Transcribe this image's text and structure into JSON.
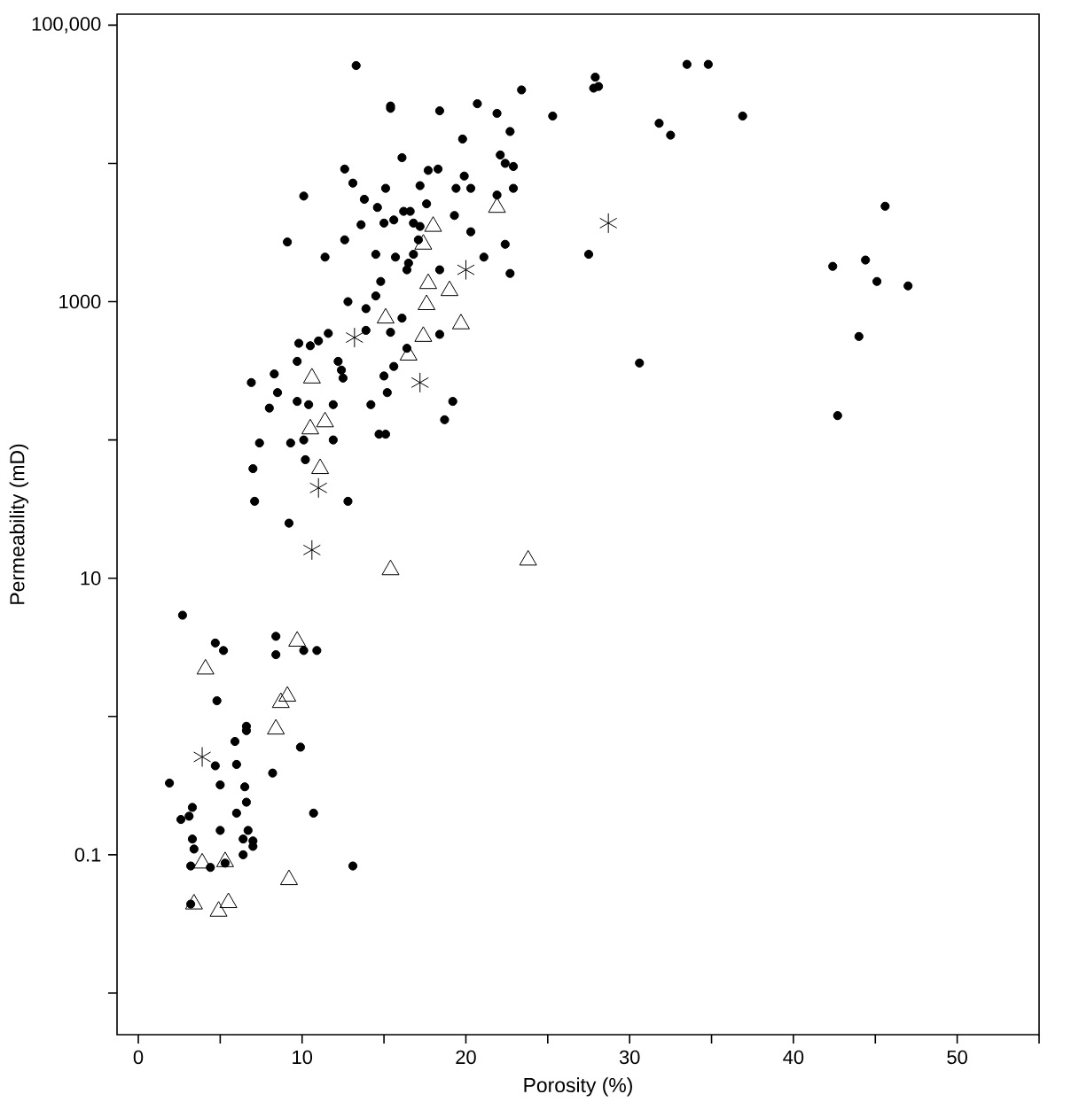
{
  "chart_data": {
    "type": "scatter",
    "xlabel": "Porosity (%)",
    "ylabel": "Permeability (mD)",
    "log": "y",
    "xlim": [
      -1.3,
      55
    ],
    "ylim": [
      0.005,
      120000
    ],
    "xticks": [
      0,
      {
        "value": 5,
        "label": null
      },
      10,
      {
        "value": 15,
        "label": null
      },
      20,
      {
        "value": 25,
        "label": null
      },
      30,
      {
        "value": 35,
        "label": null
      },
      40,
      {
        "value": 45,
        "label": null
      },
      50,
      {
        "value": 55,
        "label": null
      }
    ],
    "yticks": [
      {
        "value": 0.01,
        "label": null
      },
      0.1,
      {
        "value": 1,
        "label": null
      },
      10,
      {
        "value": 100,
        "label": null
      },
      1000,
      {
        "value": 10000,
        "label": null
      },
      {
        "value": 100000,
        "label": "100,000"
      }
    ],
    "series": [
      {
        "color": "#000000",
        "marker": "circle",
        "x": [
          13.3,
          15.4,
          15.4,
          18.4,
          20.7,
          21.9,
          23.4,
          25.3,
          19.8,
          22.7,
          16.1,
          22.1,
          22.4,
          22.9,
          12.6,
          17.7,
          18.3,
          13.1,
          15.1,
          17.2,
          19.4,
          19.9,
          20.3,
          22.9,
          10.1,
          13.8,
          14.6,
          17.6,
          16.2,
          16.6,
          15.6,
          15.0,
          13.6,
          16.8,
          17.2,
          19.3,
          21.9,
          9.1,
          12.6,
          11.4,
          14.5,
          15.7,
          20.3,
          22.4,
          17.1,
          16.8,
          16.5,
          16.4,
          21.1,
          22.7,
          18.4,
          14.8,
          14.5,
          12.8,
          13.9,
          16.1,
          18.4,
          15.4,
          13.9,
          11.6,
          11.0,
          10.5,
          9.8,
          16.4,
          9.7,
          12.2,
          12.4,
          12.5,
          15.6,
          15.0,
          6.9,
          8.3,
          8.5,
          19.2,
          18.7,
          9.7,
          10.4,
          11.9,
          8.0,
          14.2,
          15.2,
          14.7,
          15.1,
          7.4,
          9.3,
          10.1,
          11.9,
          10.2,
          7.0,
          7.1,
          12.8,
          9.2,
          27.9,
          27.8,
          28.1,
          33.5,
          34.8,
          31.8,
          32.5,
          36.9,
          27.5,
          30.6,
          45.6,
          42.4,
          44.4,
          45.1,
          47.0,
          44.0,
          42.7,
          2.7,
          4.7,
          5.2,
          8.4,
          8.4,
          10.1,
          10.9,
          4.8,
          6.6,
          6.6,
          5.9,
          9.9,
          4.7,
          6.0,
          8.2,
          1.9,
          5.0,
          6.5,
          6.6,
          3.3,
          2.6,
          3.1,
          6.0,
          10.7,
          5.0,
          3.3,
          3.4,
          6.7,
          6.4,
          7.0,
          7.0,
          6.4,
          3.2,
          4.4,
          5.3,
          13.1,
          3.2
        ],
        "values": [
          51000,
          26000,
          25000,
          24000,
          27000,
          23000,
          34000,
          22000,
          15000,
          17000,
          11000,
          11500,
          10000,
          9500,
          9100,
          8900,
          9100,
          7200,
          6600,
          6900,
          6600,
          8100,
          6600,
          6600,
          5800,
          5500,
          4800,
          5100,
          4500,
          4500,
          3900,
          3700,
          3600,
          3700,
          3500,
          4200,
          5900,
          2700,
          2800,
          2100,
          2200,
          2100,
          3200,
          2600,
          2800,
          2200,
          1900,
          1700,
          2100,
          1600,
          1700,
          1400,
          1100,
          1000,
          890,
          760,
          580,
          600,
          620,
          590,
          520,
          480,
          500,
          460,
          370,
          370,
          320,
          280,
          340,
          290,
          260,
          300,
          220,
          190,
          140,
          190,
          180,
          180,
          170,
          180,
          220,
          110,
          110,
          95,
          95,
          100,
          100,
          72,
          62,
          36,
          36,
          25,
          42000,
          35000,
          36000,
          52000,
          52000,
          19500,
          16000,
          22000,
          2200,
          360,
          4900,
          1800,
          2000,
          1400,
          1300,
          560,
          150,
          5.4,
          3.4,
          3.0,
          3.8,
          2.8,
          3.0,
          3.0,
          1.3,
          0.85,
          0.79,
          0.66,
          0.6,
          0.44,
          0.45,
          0.39,
          0.33,
          0.32,
          0.31,
          0.24,
          0.22,
          0.18,
          0.19,
          0.2,
          0.2,
          0.15,
          0.13,
          0.11,
          0.15,
          0.13,
          0.126,
          0.115,
          0.1,
          0.083,
          0.081,
          0.087,
          0.083,
          0.044
        ]
      },
      {
        "color": "#000000",
        "marker": "triangle",
        "x": [
          21.9,
          18.0,
          17.4,
          17.7,
          19.0,
          17.6,
          15.1,
          19.7,
          17.4,
          16.5,
          10.6,
          11.4,
          10.5,
          11.1,
          15.4,
          23.8,
          9.7,
          4.1,
          9.1,
          8.7,
          8.4,
          3.9,
          5.3,
          9.2,
          3.4,
          5.5,
          4.9
        ],
        "values": [
          4800,
          3500,
          2600,
          1350,
          1200,
          950,
          760,
          690,
          560,
          410,
          280,
          135,
          120,
          62,
          11.5,
          13.5,
          3.5,
          2.2,
          1.4,
          1.26,
          0.81,
          0.087,
          0.089,
          0.066,
          0.044,
          0.045,
          0.039
        ]
      },
      {
        "color": "#000000",
        "marker": "cross",
        "x": [
          20.0,
          13.2,
          17.2,
          11.0,
          10.6,
          28.7,
          3.9
        ],
        "values": [
          1700,
          550,
          260,
          45,
          16,
          3700,
          0.51
        ]
      }
    ]
  }
}
